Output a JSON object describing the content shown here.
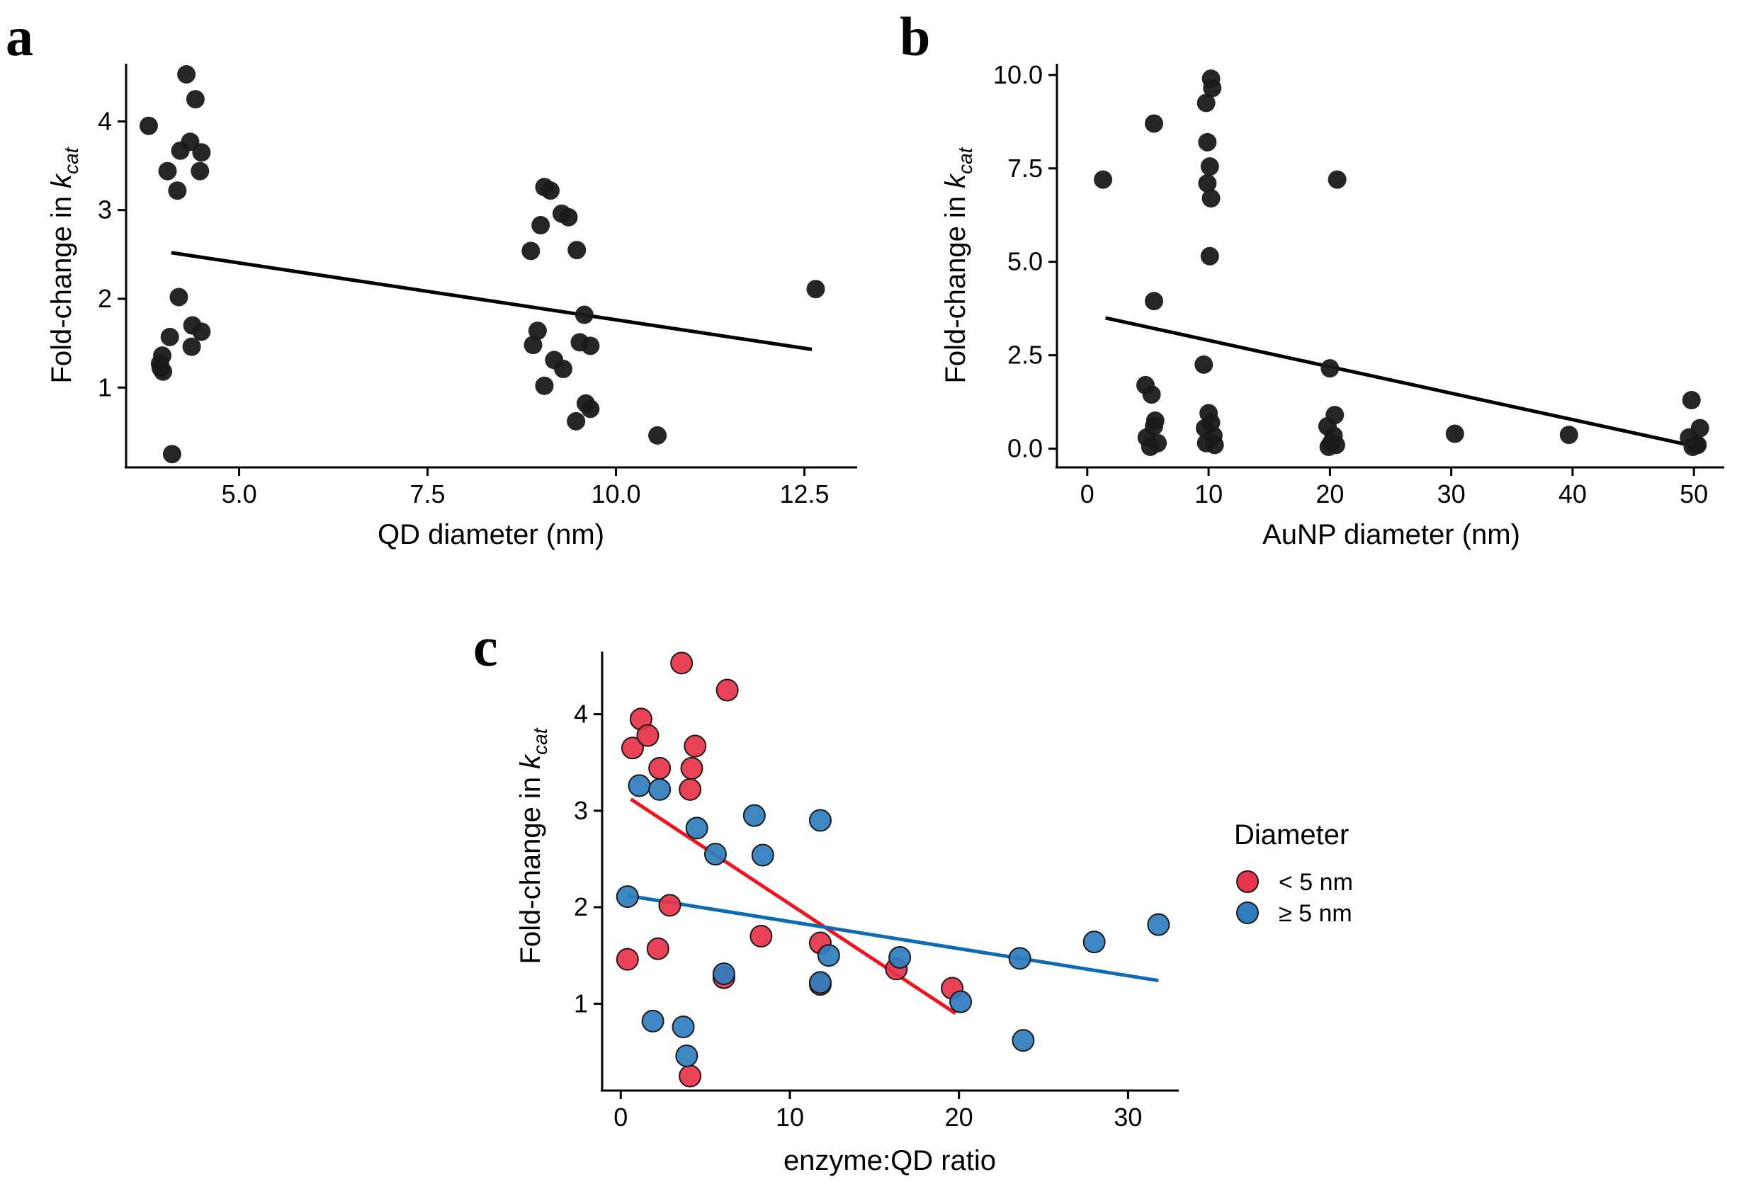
{
  "chart_data": [
    {
      "id": "a",
      "panel_label": "a",
      "type": "scatter",
      "xlabel": "QD diameter (nm)",
      "ylabel_prefix": "Fold-change in ",
      "ylabel_symbol": "k",
      "ylabel_subscript": "cat",
      "xlim": [
        3.5,
        13.2
      ],
      "ylim": [
        0.1,
        4.65
      ],
      "xticks": [
        5.0,
        7.5,
        10.0,
        12.5
      ],
      "xtick_labels": [
        "5.0",
        "7.5",
        "10.0",
        "12.5"
      ],
      "yticks": [
        1,
        2,
        3,
        4
      ],
      "ytick_labels": [
        "1",
        "2",
        "3",
        "4"
      ],
      "series": [
        {
          "name": "points",
          "color": "#1a1a1a",
          "points": [
            [
              3.8,
              3.95
            ],
            [
              4.05,
              3.44
            ],
            [
              4.18,
              3.22
            ],
            [
              4.22,
              3.67
            ],
            [
              4.3,
              4.53
            ],
            [
              4.35,
              3.77
            ],
            [
              4.42,
              4.25
            ],
            [
              4.5,
              3.65
            ],
            [
              4.48,
              3.44
            ],
            [
              4.2,
              2.02
            ],
            [
              4.38,
              1.7
            ],
            [
              4.5,
              1.63
            ],
            [
              4.37,
              1.46
            ],
            [
              4.08,
              1.57
            ],
            [
              3.98,
              1.36
            ],
            [
              3.95,
              1.27
            ],
            [
              3.96,
              1.22
            ],
            [
              3.99,
              1.18
            ],
            [
              4.11,
              0.25
            ],
            [
              9.05,
              3.26
            ],
            [
              9.13,
              3.22
            ],
            [
              9.28,
              2.96
            ],
            [
              9.37,
              2.92
            ],
            [
              9.48,
              2.55
            ],
            [
              9.0,
              2.83
            ],
            [
              8.87,
              2.54
            ],
            [
              9.58,
              1.82
            ],
            [
              8.96,
              1.64
            ],
            [
              9.52,
              1.51
            ],
            [
              9.66,
              1.47
            ],
            [
              8.9,
              1.48
            ],
            [
              9.18,
              1.31
            ],
            [
              9.3,
              1.21
            ],
            [
              9.05,
              1.02
            ],
            [
              9.6,
              0.82
            ],
            [
              9.66,
              0.76
            ],
            [
              9.47,
              0.62
            ],
            [
              10.55,
              0.46
            ],
            [
              12.65,
              2.11
            ]
          ]
        }
      ],
      "fit_lines": [
        {
          "name": "fit",
          "color": "#000000",
          "x": [
            4.1,
            12.6
          ],
          "y": [
            2.52,
            1.43
          ]
        }
      ]
    },
    {
      "id": "b",
      "panel_label": "b",
      "type": "scatter",
      "xlabel": "AuNP diameter (nm)",
      "ylabel_prefix": "Fold-change in ",
      "ylabel_symbol": "k",
      "ylabel_subscript": "cat",
      "xlim": [
        -2.5,
        52.5
      ],
      "ylim": [
        -0.5,
        10.3
      ],
      "xticks": [
        0,
        10,
        20,
        30,
        40,
        50
      ],
      "xtick_labels": [
        "0",
        "10",
        "20",
        "30",
        "40",
        "50"
      ],
      "yticks": [
        0.0,
        2.5,
        5.0,
        7.5,
        10.0
      ],
      "ytick_labels": [
        "0.0",
        "2.5",
        "5.0",
        "7.5",
        "10.0"
      ],
      "series": [
        {
          "name": "points",
          "color": "#1a1a1a",
          "points": [
            [
              1.3,
              7.2
            ],
            [
              5.5,
              8.7
            ],
            [
              5.5,
              3.95
            ],
            [
              4.8,
              1.7
            ],
            [
              5.3,
              1.45
            ],
            [
              5.6,
              0.75
            ],
            [
              5.5,
              0.6
            ],
            [
              4.9,
              0.3
            ],
            [
              5.8,
              0.15
            ],
            [
              5.2,
              0.05
            ],
            [
              10.2,
              9.9
            ],
            [
              10.3,
              9.65
            ],
            [
              9.8,
              9.25
            ],
            [
              9.9,
              8.2
            ],
            [
              10.1,
              7.55
            ],
            [
              9.9,
              7.1
            ],
            [
              10.2,
              6.7
            ],
            [
              10.1,
              5.15
            ],
            [
              9.6,
              2.25
            ],
            [
              10.0,
              0.95
            ],
            [
              10.2,
              0.7
            ],
            [
              9.7,
              0.55
            ],
            [
              10.4,
              0.35
            ],
            [
              9.8,
              0.15
            ],
            [
              10.5,
              0.1
            ],
            [
              20.6,
              7.2
            ],
            [
              20.0,
              2.15
            ],
            [
              20.4,
              0.9
            ],
            [
              19.8,
              0.6
            ],
            [
              20.3,
              0.35
            ],
            [
              20.1,
              0.15
            ],
            [
              19.9,
              0.05
            ],
            [
              20.5,
              0.1
            ],
            [
              30.3,
              0.4
            ],
            [
              39.7,
              0.37
            ],
            [
              49.8,
              1.3
            ],
            [
              50.5,
              0.55
            ],
            [
              49.6,
              0.3
            ],
            [
              50.3,
              0.1
            ],
            [
              49.9,
              0.05
            ],
            [
              50.2,
              0.12
            ]
          ]
        }
      ],
      "fit_lines": [
        {
          "name": "fit",
          "color": "#000000",
          "x": [
            1.5,
            50.0
          ],
          "y": [
            3.5,
            0.07
          ]
        }
      ]
    },
    {
      "id": "c",
      "panel_label": "c",
      "type": "scatter",
      "xlabel": "enzyme:QD ratio",
      "ylabel_prefix": "Fold-change in ",
      "ylabel_symbol": "k",
      "ylabel_subscript": "cat",
      "xlim": [
        -1.1,
        33.0
      ],
      "ylim": [
        0.1,
        4.65
      ],
      "xticks": [
        0,
        10,
        20,
        30
      ],
      "xtick_labels": [
        "0",
        "10",
        "20",
        "30"
      ],
      "yticks": [
        1,
        2,
        3,
        4
      ],
      "ytick_labels": [
        "1",
        "2",
        "3",
        "4"
      ],
      "legend": {
        "title": "Diameter",
        "position": "right",
        "entries": [
          {
            "label": "< 5 nm",
            "color": "#e8334a"
          },
          {
            "label": "≥ 5 nm",
            "color": "#2f7dbe"
          }
        ]
      },
      "series": [
        {
          "name": "< 5 nm",
          "color": "#e8334a",
          "points": [
            [
              3.6,
              4.53
            ],
            [
              6.3,
              4.25
            ],
            [
              1.2,
              3.95
            ],
            [
              0.7,
              3.65
            ],
            [
              1.6,
              3.78
            ],
            [
              4.4,
              3.67
            ],
            [
              2.3,
              3.44
            ],
            [
              4.2,
              3.44
            ],
            [
              4.1,
              3.22
            ],
            [
              2.9,
              2.02
            ],
            [
              8.3,
              1.7
            ],
            [
              11.8,
              1.63
            ],
            [
              2.2,
              1.57
            ],
            [
              0.4,
              1.46
            ],
            [
              16.3,
              1.36
            ],
            [
              6.1,
              1.27
            ],
            [
              11.8,
              1.2
            ],
            [
              19.6,
              1.16
            ],
            [
              4.1,
              0.25
            ]
          ]
        },
        {
          "name": "≥ 5 nm",
          "color": "#2f7dbe",
          "points": [
            [
              1.1,
              3.26
            ],
            [
              2.3,
              3.22
            ],
            [
              7.9,
              2.95
            ],
            [
              4.5,
              2.82
            ],
            [
              11.8,
              2.9
            ],
            [
              5.6,
              2.55
            ],
            [
              8.4,
              2.54
            ],
            [
              0.4,
              2.11
            ],
            [
              31.8,
              1.82
            ],
            [
              28.0,
              1.64
            ],
            [
              12.3,
              1.5
            ],
            [
              16.5,
              1.48
            ],
            [
              23.6,
              1.47
            ],
            [
              6.1,
              1.31
            ],
            [
              11.8,
              1.22
            ],
            [
              20.1,
              1.02
            ],
            [
              1.9,
              0.82
            ],
            [
              3.7,
              0.76
            ],
            [
              23.8,
              0.62
            ],
            [
              3.9,
              0.46
            ]
          ]
        }
      ],
      "fit_lines": [
        {
          "name": "< 5 nm fit",
          "color": "#f0141e",
          "x": [
            0.6,
            19.8
          ],
          "y": [
            3.12,
            0.9
          ]
        },
        {
          "name": "≥ 5 nm fit",
          "color": "#0f6ab4",
          "x": [
            0.4,
            31.8
          ],
          "y": [
            2.12,
            1.24
          ]
        }
      ]
    }
  ]
}
